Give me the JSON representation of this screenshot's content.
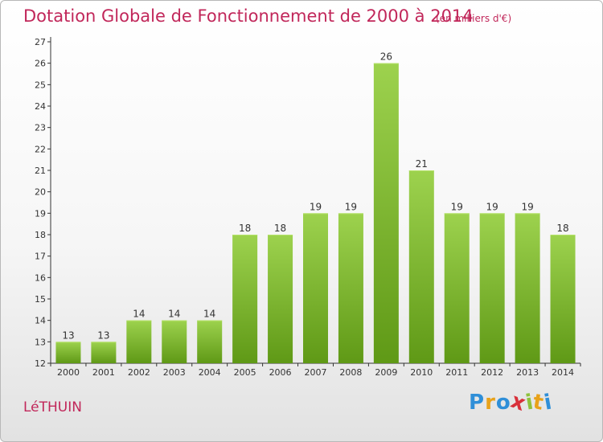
{
  "title": "Dotation Globale de Fonctionnement de 2000 à 2014",
  "subtitle": "(en milliers d'€)",
  "town": "LéTHUIN",
  "logo": {
    "letters": [
      "P",
      "r",
      "o",
      "x",
      "i",
      "t",
      "i"
    ],
    "colors": [
      "#2f8fd8",
      "#e8a21a",
      "#2f8fd8",
      "#d8303a",
      "#8ec23c",
      "#e8a21a",
      "#2f8fd8"
    ]
  },
  "colors": {
    "title": "#c1275a",
    "bar_light": "#9dd24e",
    "bar_dark": "#5f9916",
    "axis": "#333333"
  },
  "chart_data": {
    "type": "bar",
    "categories": [
      "2000",
      "2001",
      "2002",
      "2003",
      "2004",
      "2005",
      "2006",
      "2007",
      "2008",
      "2009",
      "2010",
      "2011",
      "2012",
      "2013",
      "2014"
    ],
    "values": [
      13,
      13,
      14,
      14,
      14,
      18,
      18,
      19,
      19,
      26,
      21,
      19,
      19,
      19,
      18
    ],
    "value_labels": [
      "13",
      "13",
      "14",
      "14",
      "14",
      "18",
      "18",
      "19",
      "19",
      "26",
      "21",
      "19",
      "19",
      "19",
      "18"
    ],
    "yticks": [
      "12",
      "13",
      "14",
      "15",
      "16",
      "17",
      "18",
      "19",
      "20",
      "21",
      "22",
      "23",
      "24",
      "25",
      "26",
      "27"
    ],
    "ylim": [
      12,
      27
    ],
    "title": "Dotation Globale de Fonctionnement de 2000 à 2014",
    "xlabel": "",
    "ylabel": "",
    "grid": false,
    "legend": "none"
  }
}
